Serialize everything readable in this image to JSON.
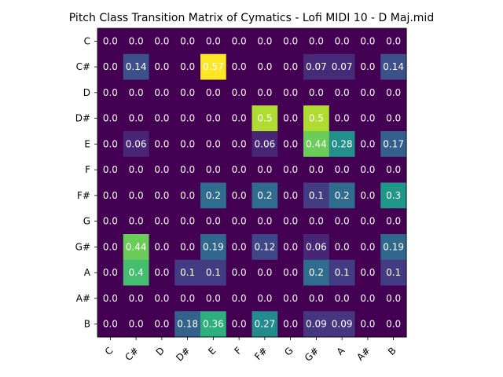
{
  "chart_data": {
    "type": "heatmap",
    "title": "Pitch Class Transition Matrix of Cymatics - Lofi MIDI 10 - D Maj.mid",
    "xlabel": "",
    "ylabel": "",
    "colormap": "viridis",
    "value_range": [
      0,
      0.57
    ],
    "x_categories": [
      "C",
      "C#",
      "D",
      "D#",
      "E",
      "F",
      "F#",
      "G",
      "G#",
      "A",
      "A#",
      "B"
    ],
    "y_categories": [
      "C",
      "C#",
      "D",
      "D#",
      "E",
      "F",
      "F#",
      "G",
      "G#",
      "A",
      "A#",
      "B"
    ],
    "values": [
      [
        0.0,
        0.0,
        0.0,
        0.0,
        0.0,
        0.0,
        0.0,
        0.0,
        0.0,
        0.0,
        0.0,
        0.0
      ],
      [
        0.0,
        0.14,
        0.0,
        0.0,
        0.57,
        0.0,
        0.0,
        0.0,
        0.07,
        0.07,
        0.0,
        0.14
      ],
      [
        0.0,
        0.0,
        0.0,
        0.0,
        0.0,
        0.0,
        0.0,
        0.0,
        0.0,
        0.0,
        0.0,
        0.0
      ],
      [
        0.0,
        0.0,
        0.0,
        0.0,
        0.0,
        0.0,
        0.5,
        0.0,
        0.5,
        0.0,
        0.0,
        0.0
      ],
      [
        0.0,
        0.06,
        0.0,
        0.0,
        0.0,
        0.0,
        0.06,
        0.0,
        0.44,
        0.28,
        0.0,
        0.17
      ],
      [
        0.0,
        0.0,
        0.0,
        0.0,
        0.0,
        0.0,
        0.0,
        0.0,
        0.0,
        0.0,
        0.0,
        0.0
      ],
      [
        0.0,
        0.0,
        0.0,
        0.0,
        0.2,
        0.0,
        0.2,
        0.0,
        0.1,
        0.2,
        0.0,
        0.3
      ],
      [
        0.0,
        0.0,
        0.0,
        0.0,
        0.0,
        0.0,
        0.0,
        0.0,
        0.0,
        0.0,
        0.0,
        0.0
      ],
      [
        0.0,
        0.44,
        0.0,
        0.0,
        0.19,
        0.0,
        0.12,
        0.0,
        0.06,
        0.0,
        0.0,
        0.19
      ],
      [
        0.0,
        0.4,
        0.0,
        0.1,
        0.1,
        0.0,
        0.0,
        0.0,
        0.2,
        0.1,
        0.0,
        0.1
      ],
      [
        0.0,
        0.0,
        0.0,
        0.0,
        0.0,
        0.0,
        0.0,
        0.0,
        0.0,
        0.0,
        0.0,
        0.0
      ],
      [
        0.0,
        0.0,
        0.0,
        0.18,
        0.36,
        0.0,
        0.27,
        0.0,
        0.09,
        0.09,
        0.0,
        0.0
      ]
    ],
    "cell_labels": [
      [
        "0.0",
        "0.0",
        "0.0",
        "0.0",
        "0.0",
        "0.0",
        "0.0",
        "0.0",
        "0.0",
        "0.0",
        "0.0",
        "0.0"
      ],
      [
        "0.0",
        "0.14",
        "0.0",
        "0.0",
        "0.57",
        "0.0",
        "0.0",
        "0.0",
        "0.07",
        "0.07",
        "0.0",
        "0.14"
      ],
      [
        "0.0",
        "0.0",
        "0.0",
        "0.0",
        "0.0",
        "0.0",
        "0.0",
        "0.0",
        "0.0",
        "0.0",
        "0.0",
        "0.0"
      ],
      [
        "0.0",
        "0.0",
        "0.0",
        "0.0",
        "0.0",
        "0.0",
        "0.5",
        "0.0",
        "0.5",
        "0.0",
        "0.0",
        "0.0"
      ],
      [
        "0.0",
        "0.06",
        "0.0",
        "0.0",
        "0.0",
        "0.0",
        "0.06",
        "0.0",
        "0.44",
        "0.28",
        "0.0",
        "0.17"
      ],
      [
        "0.0",
        "0.0",
        "0.0",
        "0.0",
        "0.0",
        "0.0",
        "0.0",
        "0.0",
        "0.0",
        "0.0",
        "0.0",
        "0.0"
      ],
      [
        "0.0",
        "0.0",
        "0.0",
        "0.0",
        "0.2",
        "0.0",
        "0.2",
        "0.0",
        "0.1",
        "0.2",
        "0.0",
        "0.3"
      ],
      [
        "0.0",
        "0.0",
        "0.0",
        "0.0",
        "0.0",
        "0.0",
        "0.0",
        "0.0",
        "0.0",
        "0.0",
        "0.0",
        "0.0"
      ],
      [
        "0.0",
        "0.44",
        "0.0",
        "0.0",
        "0.19",
        "0.0",
        "0.12",
        "0.0",
        "0.06",
        "0.0",
        "0.0",
        "0.19"
      ],
      [
        "0.0",
        "0.4",
        "0.0",
        "0.1",
        "0.1",
        "0.0",
        "0.0",
        "0.0",
        "0.2",
        "0.1",
        "0.0",
        "0.1"
      ],
      [
        "0.0",
        "0.0",
        "0.0",
        "0.0",
        "0.0",
        "0.0",
        "0.0",
        "0.0",
        "0.0",
        "0.0",
        "0.0",
        "0.0"
      ],
      [
        "0.0",
        "0.0",
        "0.0",
        "0.18",
        "0.36",
        "0.0",
        "0.27",
        "0.0",
        "0.09",
        "0.09",
        "0.0",
        "0.0"
      ]
    ],
    "grid": false,
    "legend": "none"
  }
}
